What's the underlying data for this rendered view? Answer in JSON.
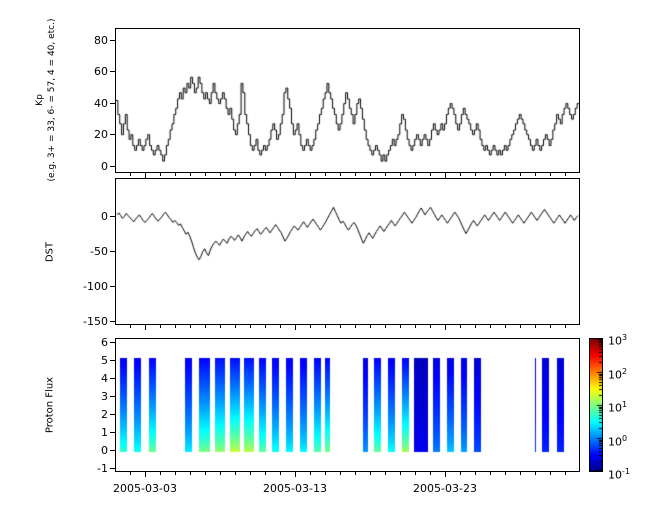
{
  "figure": {
    "background": "#ffffff",
    "axis_color": "#000000",
    "line_color": "#000000"
  },
  "x_axis": {
    "range_days": [
      0,
      31
    ],
    "start_date": "2005-03-01",
    "tick_days": [
      2,
      12,
      22
    ],
    "tick_labels": [
      "2005-03-03",
      "2005-03-13",
      "2005-03-23"
    ]
  },
  "chart_data": [
    {
      "id": "kp",
      "type": "line",
      "line_style": "steps",
      "ylabel_line1": "Kp",
      "ylabel_line2": "(e.g. 3+ = 33, 6- = 57, 4 = 40, etc.)",
      "ylim": [
        -4,
        88
      ],
      "yticks": [
        0,
        20,
        40,
        60,
        80
      ],
      "sample_hours": 3,
      "values": [
        42,
        33,
        27,
        20,
        27,
        33,
        23,
        17,
        20,
        13,
        10,
        13,
        17,
        13,
        10,
        13,
        17,
        20,
        13,
        10,
        7,
        10,
        13,
        10,
        7,
        3,
        7,
        13,
        17,
        23,
        27,
        33,
        37,
        43,
        47,
        43,
        50,
        47,
        53,
        50,
        57,
        53,
        47,
        50,
        57,
        53,
        47,
        43,
        47,
        43,
        40,
        47,
        53,
        47,
        43,
        40,
        43,
        47,
        43,
        37,
        33,
        37,
        30,
        23,
        20,
        27,
        33,
        53,
        47,
        33,
        27,
        20,
        13,
        10,
        13,
        17,
        10,
        7,
        10,
        13,
        10,
        13,
        17,
        23,
        27,
        23,
        17,
        20,
        27,
        33,
        47,
        50,
        43,
        37,
        27,
        20,
        23,
        27,
        20,
        13,
        10,
        13,
        17,
        13,
        10,
        13,
        17,
        23,
        27,
        33,
        37,
        43,
        47,
        53,
        47,
        43,
        37,
        33,
        27,
        23,
        27,
        33,
        40,
        47,
        43,
        37,
        33,
        27,
        33,
        40,
        43,
        37,
        30,
        23,
        17,
        13,
        10,
        7,
        10,
        13,
        10,
        7,
        3,
        7,
        3,
        7,
        10,
        13,
        17,
        13,
        17,
        20,
        27,
        33,
        30,
        23,
        17,
        13,
        10,
        13,
        17,
        20,
        17,
        13,
        17,
        20,
        17,
        13,
        17,
        23,
        27,
        23,
        20,
        23,
        27,
        23,
        27,
        33,
        37,
        40,
        37,
        33,
        27,
        23,
        27,
        33,
        37,
        33,
        30,
        27,
        23,
        20,
        23,
        27,
        23,
        17,
        13,
        10,
        13,
        10,
        7,
        10,
        13,
        10,
        7,
        10,
        7,
        10,
        13,
        10,
        13,
        17,
        20,
        23,
        27,
        30,
        33,
        30,
        27,
        23,
        20,
        17,
        13,
        10,
        13,
        17,
        13,
        10,
        13,
        17,
        20,
        17,
        13,
        17,
        23,
        27,
        33,
        30,
        27,
        33,
        37,
        40,
        37,
        33,
        30,
        33,
        37,
        40
      ]
    },
    {
      "id": "dst",
      "type": "line",
      "line_style": "line",
      "ylabel": "DST",
      "ylim": [
        -155,
        55
      ],
      "yticks": [
        0,
        -50,
        -100,
        -150
      ],
      "sample_hours": 3,
      "values": [
        3,
        6,
        2,
        -2,
        1,
        5,
        2,
        -1,
        -4,
        -7,
        -3,
        0,
        3,
        -1,
        -5,
        -8,
        -5,
        -2,
        2,
        5,
        1,
        -3,
        -6,
        -3,
        0,
        4,
        7,
        3,
        -1,
        -4,
        -8,
        -5,
        -8,
        -12,
        -10,
        -15,
        -20,
        -25,
        -22,
        -28,
        -35,
        -44,
        -52,
        -58,
        -62,
        -57,
        -50,
        -46,
        -52,
        -56,
        -48,
        -42,
        -38,
        -35,
        -38,
        -41,
        -36,
        -32,
        -35,
        -38,
        -32,
        -28,
        -30,
        -34,
        -30,
        -26,
        -30,
        -35,
        -29,
        -25,
        -21,
        -25,
        -28,
        -24,
        -20,
        -17,
        -21,
        -25,
        -22,
        -18,
        -15,
        -19,
        -23,
        -19,
        -15,
        -11,
        -15,
        -19,
        -23,
        -29,
        -35,
        -31,
        -26,
        -21,
        -17,
        -13,
        -16,
        -19,
        -15,
        -11,
        -7,
        -11,
        -15,
        -11,
        -7,
        -3,
        -7,
        -11,
        -15,
        -19,
        -15,
        -11,
        -6,
        -1,
        4,
        9,
        14,
        8,
        2,
        -4,
        -9,
        -6,
        -10,
        -15,
        -19,
        -15,
        -11,
        -8,
        -12,
        -18,
        -25,
        -32,
        -38,
        -33,
        -27,
        -23,
        -27,
        -31,
        -26,
        -21,
        -17,
        -13,
        -17,
        -21,
        -17,
        -13,
        -9,
        -5,
        -9,
        -13,
        -9,
        -5,
        -1,
        3,
        7,
        3,
        -1,
        -5,
        -9,
        -5,
        -1,
        4,
        9,
        13,
        8,
        3,
        7,
        11,
        14,
        9,
        4,
        -1,
        -5,
        -1,
        3,
        -1,
        -5,
        -9,
        -5,
        -1,
        3,
        7,
        3,
        -1,
        -7,
        -13,
        -19,
        -24,
        -19,
        -14,
        -9,
        -5,
        -9,
        -13,
        -9,
        -5,
        -1,
        3,
        -1,
        -5,
        -1,
        3,
        7,
        3,
        -1,
        -5,
        -1,
        3,
        7,
        3,
        -1,
        -5,
        -9,
        -5,
        -1,
        3,
        -1,
        -5,
        -9,
        -5,
        -1,
        3,
        7,
        3,
        -1,
        -5,
        -1,
        3,
        7,
        11,
        7,
        3,
        -1,
        -5,
        -9,
        -5,
        -1,
        3,
        -1,
        -5,
        -9,
        -5,
        -1,
        3,
        -1,
        -5,
        -1,
        2
      ]
    },
    {
      "id": "proton_flux",
      "type": "heatmap",
      "ylabel": "Proton Flux",
      "ylim": [
        -1.15,
        6.3
      ],
      "yticks": [
        -1,
        0,
        1,
        2,
        3,
        4,
        5,
        6
      ],
      "colormap": "jet",
      "stripe_y_range": [
        0,
        5.25
      ],
      "stripes_note": "each stripe: [start_day, end_day, log10_flux_at_bottom, log10_flux_at_top]",
      "stripes": [
        [
          0.27,
          0.73,
          0.7,
          -0.55
        ],
        [
          1.2,
          1.67,
          0.6,
          -0.55
        ],
        [
          2.2,
          2.67,
          0.95,
          -0.5
        ],
        [
          4.6,
          5.07,
          0.45,
          -0.55
        ],
        [
          5.53,
          6.27,
          1.0,
          -0.5
        ],
        [
          6.6,
          7.27,
          1.1,
          -0.45
        ],
        [
          7.6,
          8.27,
          1.3,
          -0.45
        ],
        [
          8.6,
          9.27,
          1.25,
          -0.45
        ],
        [
          9.6,
          10.07,
          0.9,
          -0.5
        ],
        [
          10.47,
          10.93,
          0.6,
          -0.55
        ],
        [
          11.4,
          11.87,
          0.5,
          -0.55
        ],
        [
          12.33,
          12.8,
          0.5,
          -0.55
        ],
        [
          13.27,
          13.73,
          0.85,
          -0.5
        ],
        [
          14.0,
          14.33,
          1.0,
          -0.5
        ],
        [
          16.53,
          16.87,
          0.1,
          -0.6
        ],
        [
          17.27,
          17.73,
          0.9,
          -0.5
        ],
        [
          18.2,
          18.67,
          0.55,
          -0.55
        ],
        [
          19.13,
          19.6,
          1.15,
          -0.5
        ],
        [
          19.93,
          20.87,
          -0.55,
          -0.75
        ],
        [
          21.2,
          21.67,
          0.0,
          -0.6
        ],
        [
          22.13,
          22.6,
          0.3,
          -0.6
        ],
        [
          23.07,
          23.53,
          0.15,
          -0.6
        ],
        [
          24.0,
          24.47,
          -0.2,
          -0.65
        ],
        [
          28.05,
          28.13,
          -0.3,
          -0.65
        ],
        [
          28.53,
          29.0,
          -0.35,
          -0.65
        ],
        [
          29.53,
          30.0,
          -0.35,
          -0.65
        ]
      ],
      "colorbar": {
        "scale": "log",
        "range_log10": [
          -1,
          3
        ],
        "tick_exponents": [
          3,
          2,
          1,
          0,
          -1
        ]
      }
    }
  ]
}
